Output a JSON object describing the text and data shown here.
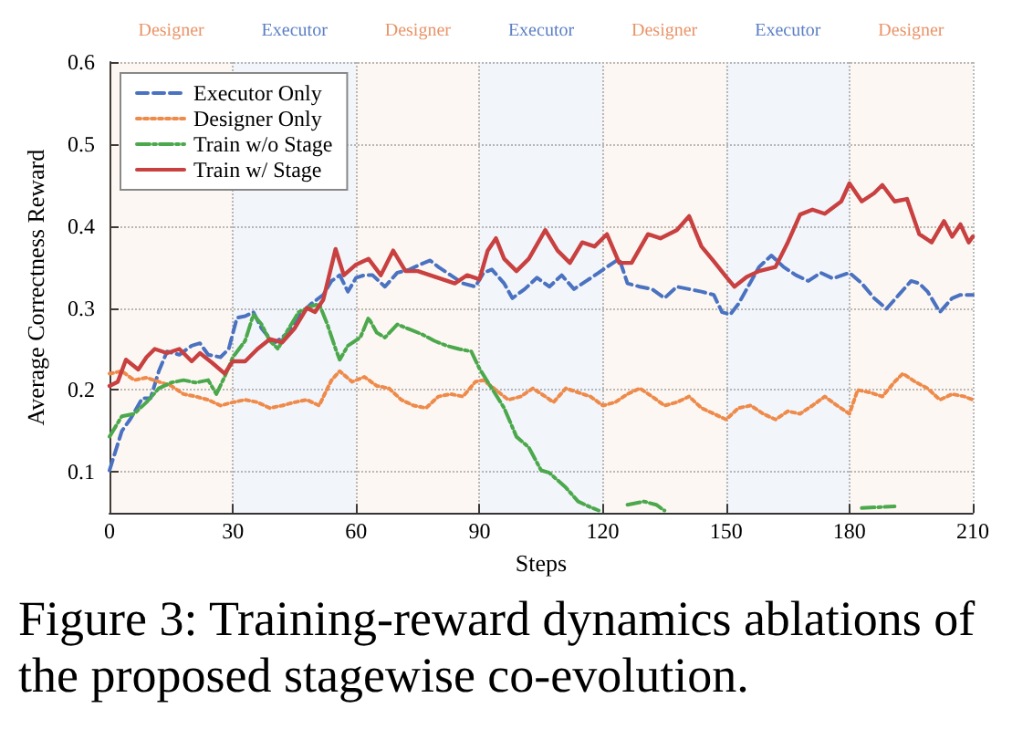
{
  "chart_data": {
    "type": "line",
    "xlabel": "Steps",
    "ylabel": "Average Correctness Reward",
    "xlim": [
      0,
      210
    ],
    "xticks": [
      0,
      30,
      60,
      90,
      120,
      150,
      180,
      210
    ],
    "ylim": [
      0.05,
      0.6
    ],
    "yticks": [
      0.1,
      0.2,
      0.3,
      0.4,
      0.5,
      0.6
    ],
    "grid": true,
    "legend": "top left",
    "marker": "none",
    "annotations": [
      "Figure 3: Training-reward dynamics ablations of the proposed stagewise co-evolution."
    ],
    "bands": [
      {
        "axis": "x",
        "from": 0,
        "to": 30,
        "label": "Designer",
        "color": "#e8956a"
      },
      {
        "axis": "x",
        "from": 30,
        "to": 60,
        "label": "Executor",
        "color": "#5b7fc4"
      },
      {
        "axis": "x",
        "from": 60,
        "to": 90,
        "label": "Designer",
        "color": "#e8956a"
      },
      {
        "axis": "x",
        "from": 90,
        "to": 120,
        "label": "Executor",
        "color": "#5b7fc4"
      },
      {
        "axis": "x",
        "from": 120,
        "to": 150,
        "label": "Designer",
        "color": "#e8956a"
      },
      {
        "axis": "x",
        "from": 150,
        "to": 180,
        "label": "Executor",
        "color": "#5b7fc4"
      },
      {
        "axis": "x",
        "from": 180,
        "to": 210,
        "label": "Designer",
        "color": "#e8956a"
      }
    ],
    "series": [
      {
        "name": "Executor Only",
        "color": "#4a72c0",
        "line_style": "dashed",
        "x": [
          0,
          3,
          5,
          8,
          10,
          12,
          14,
          17,
          20,
          22,
          24,
          27,
          29,
          31,
          33,
          35,
          37,
          40,
          43,
          46,
          49,
          52,
          54,
          56,
          58,
          60,
          62,
          64,
          67,
          70,
          73,
          76,
          78,
          80,
          83,
          86,
          89,
          91,
          93,
          96,
          98,
          101,
          104,
          107,
          110,
          113,
          116,
          119,
          121,
          124,
          126,
          129,
          132,
          135,
          138,
          141,
          144,
          147,
          149,
          151,
          153,
          155,
          158,
          161,
          164,
          167,
          170,
          173,
          176,
          180,
          183,
          186,
          189,
          192,
          195,
          197,
          199,
          202,
          205,
          207,
          210
        ],
        "values": [
          0.102,
          0.15,
          0.164,
          0.19,
          0.19,
          0.223,
          0.247,
          0.243,
          0.254,
          0.257,
          0.243,
          0.24,
          0.25,
          0.288,
          0.29,
          0.295,
          0.275,
          0.257,
          0.268,
          0.29,
          0.305,
          0.316,
          0.333,
          0.34,
          0.32,
          0.337,
          0.34,
          0.34,
          0.326,
          0.343,
          0.347,
          0.354,
          0.358,
          0.35,
          0.34,
          0.33,
          0.326,
          0.343,
          0.347,
          0.33,
          0.312,
          0.323,
          0.337,
          0.326,
          0.34,
          0.323,
          0.333,
          0.343,
          0.35,
          0.36,
          0.33,
          0.326,
          0.323,
          0.312,
          0.326,
          0.323,
          0.32,
          0.316,
          0.295,
          0.292,
          0.305,
          0.323,
          0.35,
          0.364,
          0.35,
          0.34,
          0.333,
          0.343,
          0.336,
          0.343,
          0.33,
          0.312,
          0.299,
          0.316,
          0.333,
          0.33,
          0.32,
          0.295,
          0.312,
          0.316,
          0.316
        ]
      },
      {
        "name": "Designer Only",
        "color": "#ee8a4a",
        "line_style": "dotted",
        "x": [
          0,
          3,
          6,
          9,
          12,
          15,
          18,
          21,
          24,
          27,
          30,
          33,
          36,
          39,
          42,
          45,
          48,
          51,
          54,
          56,
          59,
          62,
          65,
          68,
          71,
          74,
          77,
          80,
          83,
          86,
          89,
          91,
          94,
          97,
          100,
          103,
          106,
          108,
          111,
          114,
          117,
          120,
          123,
          126,
          129,
          132,
          135,
          138,
          141,
          144,
          147,
          150,
          153,
          156,
          159,
          162,
          165,
          168,
          171,
          174,
          177,
          180,
          182,
          185,
          188,
          191,
          193,
          196,
          199,
          202,
          205,
          208,
          210
        ],
        "values": [
          0.22,
          0.223,
          0.212,
          0.215,
          0.21,
          0.205,
          0.195,
          0.192,
          0.188,
          0.181,
          0.185,
          0.188,
          0.185,
          0.178,
          0.181,
          0.185,
          0.188,
          0.181,
          0.212,
          0.223,
          0.21,
          0.216,
          0.205,
          0.202,
          0.188,
          0.181,
          0.178,
          0.192,
          0.195,
          0.192,
          0.21,
          0.212,
          0.2,
          0.188,
          0.192,
          0.202,
          0.192,
          0.185,
          0.202,
          0.197,
          0.192,
          0.181,
          0.185,
          0.195,
          0.202,
          0.192,
          0.181,
          0.185,
          0.192,
          0.178,
          0.171,
          0.164,
          0.178,
          0.181,
          0.171,
          0.164,
          0.174,
          0.171,
          0.181,
          0.192,
          0.181,
          0.171,
          0.2,
          0.197,
          0.192,
          0.21,
          0.22,
          0.21,
          0.202,
          0.188,
          0.195,
          0.192,
          0.188
        ]
      },
      {
        "name": "Train w/o Stage",
        "color": "#4ca84c",
        "line_style": "dashdot",
        "x": [
          0,
          3,
          6,
          9,
          12,
          15,
          18,
          21,
          24,
          26,
          28,
          30,
          33,
          35,
          37,
          39,
          41,
          43,
          46,
          49,
          51,
          53,
          55,
          56,
          58,
          61,
          63,
          65,
          67,
          70,
          73,
          76,
          79,
          82,
          85,
          88,
          90,
          93,
          96,
          99,
          102,
          105,
          107,
          111,
          114,
          117,
          119,
          121,
          126,
          130,
          133,
          135,
          137,
          183,
          191
        ],
        "values": [
          0.143,
          0.168,
          0.171,
          0.185,
          0.202,
          0.209,
          0.212,
          0.209,
          0.212,
          0.195,
          0.216,
          0.24,
          0.26,
          0.292,
          0.28,
          0.26,
          0.25,
          0.27,
          0.295,
          0.302,
          0.305,
          0.28,
          0.25,
          0.237,
          0.254,
          0.264,
          0.288,
          0.27,
          0.264,
          0.28,
          0.274,
          0.268,
          0.26,
          0.254,
          0.25,
          0.247,
          0.226,
          0.202,
          0.178,
          0.143,
          0.13,
          0.102,
          0.099,
          0.081,
          0.064,
          0.057,
          0.053,
          null,
          0.06,
          0.064,
          0.06,
          0.053,
          null,
          0.056,
          0.058
        ]
      },
      {
        "name": "Train w/ Stage",
        "color": "#c84040",
        "line_style": "solid",
        "x": [
          0,
          2,
          4,
          7,
          9,
          11,
          14,
          17,
          20,
          22,
          25,
          28,
          30,
          33,
          36,
          39,
          42,
          45,
          48,
          50,
          52,
          55,
          57,
          60,
          63,
          66,
          69,
          72,
          75,
          78,
          81,
          84,
          87,
          90,
          92,
          94,
          96,
          99,
          102,
          106,
          109,
          112,
          115,
          118,
          121,
          124,
          127,
          131,
          134,
          138,
          141,
          144,
          147,
          150,
          152,
          155,
          158,
          162,
          165,
          168,
          171,
          174,
          178,
          180,
          183,
          186,
          188,
          191,
          194,
          197,
          200,
          203,
          205,
          207,
          209,
          210
        ],
        "values": [
          0.205,
          0.21,
          0.237,
          0.225,
          0.24,
          0.25,
          0.245,
          0.25,
          0.235,
          0.245,
          0.233,
          0.22,
          0.235,
          0.235,
          0.25,
          0.262,
          0.258,
          0.275,
          0.3,
          0.295,
          0.31,
          0.372,
          0.34,
          0.353,
          0.36,
          0.34,
          0.37,
          0.345,
          0.345,
          0.34,
          0.335,
          0.33,
          0.34,
          0.335,
          0.37,
          0.385,
          0.36,
          0.345,
          0.36,
          0.395,
          0.37,
          0.355,
          0.38,
          0.375,
          0.39,
          0.355,
          0.355,
          0.39,
          0.385,
          0.395,
          0.412,
          0.375,
          0.357,
          0.338,
          0.326,
          0.338,
          0.345,
          0.35,
          0.38,
          0.414,
          0.42,
          0.415,
          0.43,
          0.452,
          0.43,
          0.44,
          0.45,
          0.43,
          0.433,
          0.39,
          0.38,
          0.406,
          0.387,
          0.402,
          0.38,
          0.387
        ]
      }
    ]
  }
}
